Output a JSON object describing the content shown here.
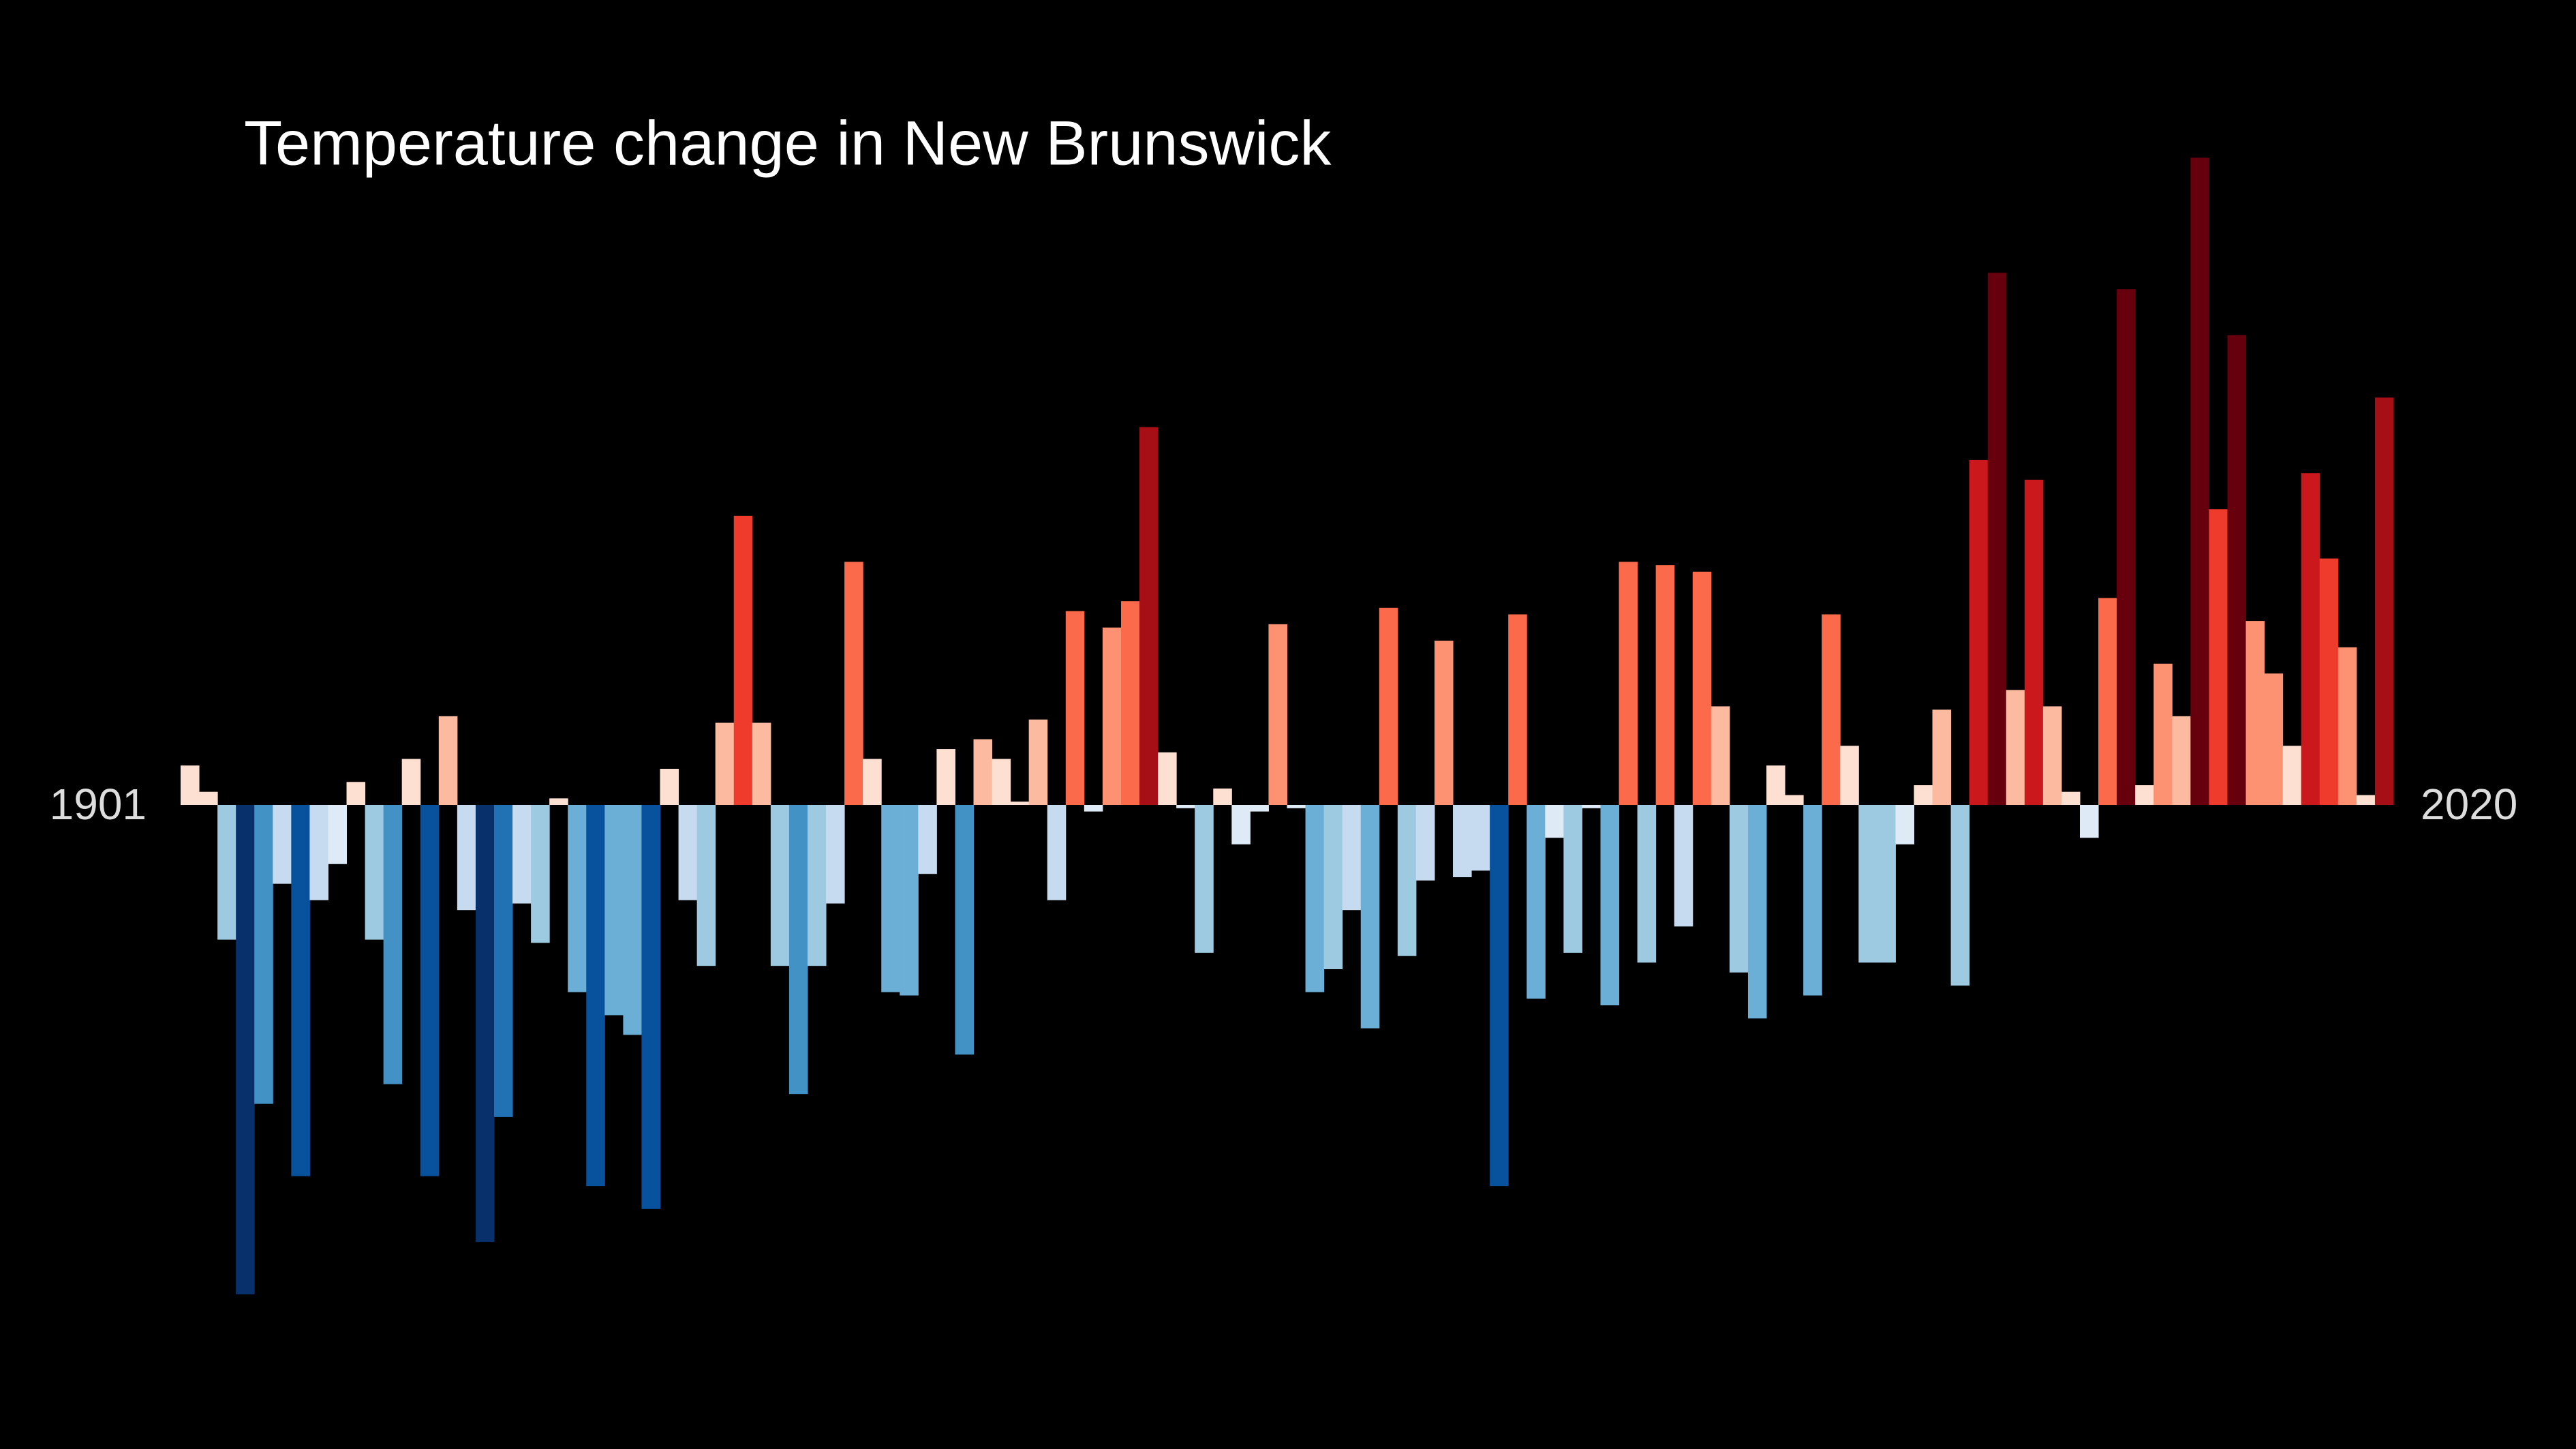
{
  "chart_data": {
    "type": "bar",
    "title": "Temperature change in New Brunswick",
    "categories": [
      1901,
      null,
      null,
      null,
      null,
      null,
      null,
      null,
      null,
      null,
      null,
      null,
      null,
      null,
      null,
      null,
      null,
      null,
      null,
      null,
      null,
      null,
      null,
      null,
      null,
      null,
      null,
      null,
      null,
      null,
      null,
      null,
      null,
      null,
      null,
      null,
      null,
      null,
      null,
      null,
      null,
      null,
      null,
      null,
      null,
      null,
      null,
      null,
      null,
      null,
      null,
      null,
      null,
      null,
      null,
      null,
      null,
      null,
      null,
      null,
      null,
      null,
      null,
      null,
      null,
      null,
      null,
      null,
      null,
      null,
      null,
      null,
      null,
      null,
      null,
      null,
      null,
      null,
      null,
      null,
      null,
      null,
      null,
      null,
      null,
      null,
      null,
      null,
      null,
      null,
      null,
      null,
      null,
      null,
      null,
      null,
      null,
      null,
      null,
      null,
      null,
      null,
      null,
      null,
      null,
      null,
      null,
      null,
      null,
      null,
      null,
      null,
      null,
      null,
      null,
      null,
      null,
      null,
      null,
      2020
    ],
    "values": [
      0.12,
      0.04,
      -0.41,
      -1.49,
      -0.91,
      -0.24,
      -1.13,
      -0.29,
      -0.18,
      0.07,
      -0.41,
      -0.85,
      0.14,
      -1.13,
      0.27,
      -0.32,
      -1.33,
      -0.95,
      -0.3,
      -0.42,
      0.02,
      -0.57,
      -1.16,
      -0.64,
      -0.7,
      -1.23,
      0.11,
      -0.29,
      -0.49,
      0.25,
      0.88,
      0.25,
      -0.49,
      -0.88,
      -0.49,
      -0.3,
      0.74,
      0.14,
      -0.57,
      -0.58,
      -0.21,
      0.17,
      -0.76,
      0.2,
      0.14,
      0.01,
      0.26,
      -0.29,
      0.59,
      -0.02,
      0.54,
      0.62,
      1.15,
      0.16,
      -0.01,
      -0.45,
      0.05,
      -0.12,
      -0.02,
      0.55,
      -0.01,
      -0.57,
      -0.5,
      -0.32,
      -0.68,
      0.6,
      -0.46,
      -0.23,
      0.5,
      -0.22,
      -0.2,
      -1.16,
      0.58,
      -0.59,
      -0.1,
      -0.45,
      -0.01,
      -0.61,
      0.74,
      -0.48,
      0.73,
      -0.37,
      0.71,
      0.3,
      -0.51,
      -0.65,
      0.12,
      0.03,
      -0.58,
      0.58,
      0.18,
      -0.48,
      -0.48,
      -0.12,
      0.06,
      0.29,
      -0.55,
      1.05,
      1.62,
      0.35,
      0.99,
      0.3,
      0.04,
      -0.1,
      0.63,
      1.57,
      0.06,
      0.43,
      0.27,
      1.97,
      0.9,
      1.43,
      0.56,
      0.4,
      0.18,
      1.01,
      0.75,
      0.48,
      0.03,
      1.24
    ],
    "ylim": [
      -2,
      2
    ],
    "clim": [
      -1.5,
      1.5
    ],
    "colorscale": [
      "#08306b",
      "#08519c",
      "#2171b5",
      "#4292c6",
      "#6baed6",
      "#9ecae1",
      "#c6dbef",
      "#deebf7",
      "#fee0d2",
      "#fcbba1",
      "#fc9272",
      "#fb6a4a",
      "#ef3b2c",
      "#cb181d",
      "#a50f15",
      "#67000d"
    ],
    "background": "#000000"
  }
}
